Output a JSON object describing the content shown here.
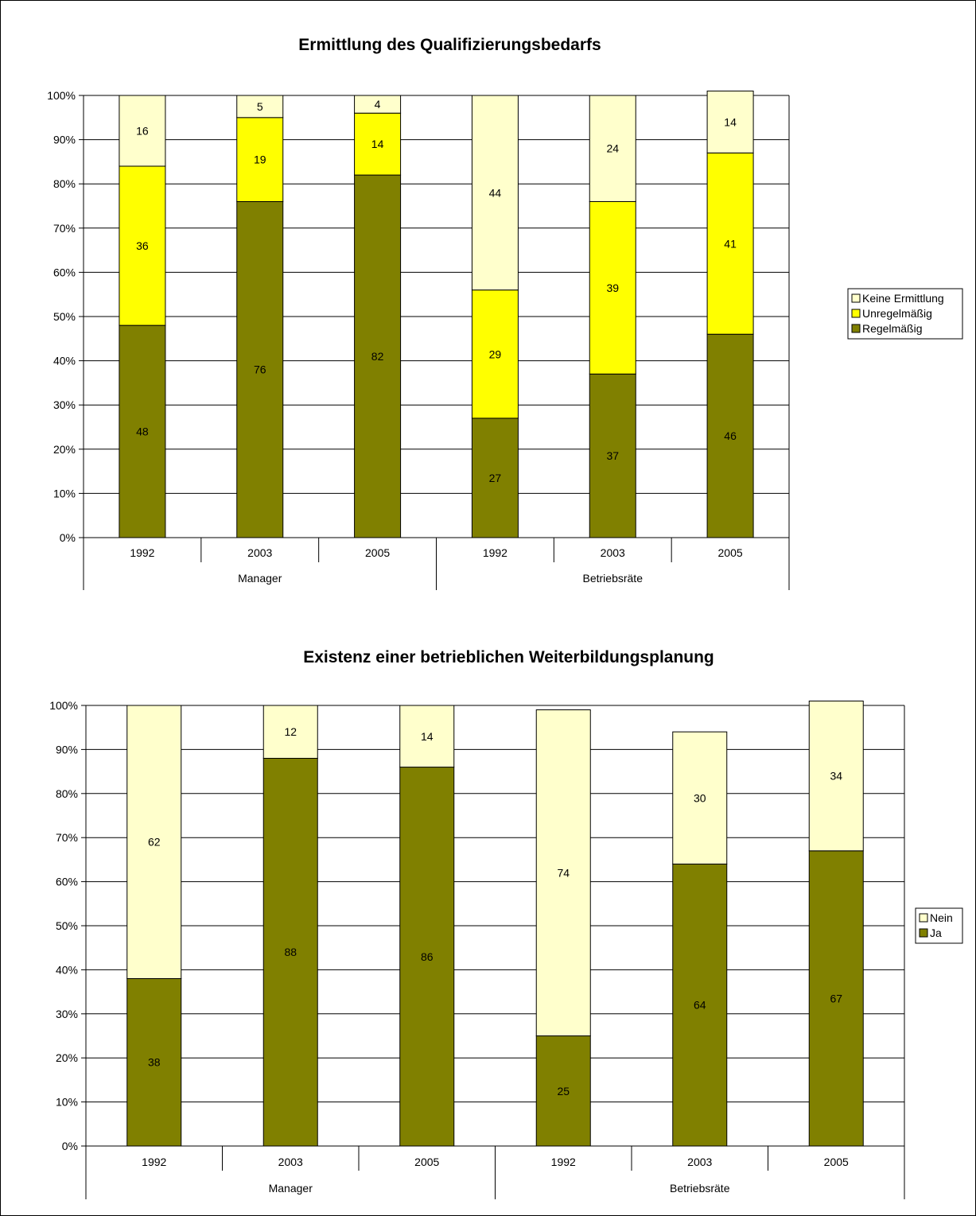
{
  "colors": {
    "regelmaessig": "#808000",
    "unregelmaessig": "#ffff00",
    "keine": "#ffffcc",
    "ja": "#808000",
    "nein": "#ffffcc"
  },
  "chart_data": [
    {
      "type": "bar",
      "stacked": true,
      "title": "Ermittlung des Qualifizierungsbedarfs",
      "groups": [
        {
          "label": "Manager",
          "categories": [
            "1992",
            "2003",
            "2005"
          ]
        },
        {
          "label": "Betriebsräte",
          "categories": [
            "1992",
            "2003",
            "2005"
          ]
        }
      ],
      "categories": [
        "1992",
        "2003",
        "2005",
        "1992",
        "2003",
        "2005"
      ],
      "y_ticks": [
        "0%",
        "10%",
        "20%",
        "30%",
        "40%",
        "50%",
        "60%",
        "70%",
        "80%",
        "90%",
        "100%"
      ],
      "ylim": [
        0,
        100
      ],
      "grid": true,
      "legend_position": "right",
      "series": [
        {
          "name": "Regelmäßig",
          "color_key": "regelmaessig",
          "values": [
            48,
            76,
            82,
            27,
            37,
            46
          ]
        },
        {
          "name": "Unregelmäßig",
          "color_key": "unregelmaessig",
          "values": [
            36,
            19,
            14,
            29,
            39,
            41
          ]
        },
        {
          "name": "Keine Ermittlung",
          "color_key": "keine",
          "values": [
            16,
            5,
            4,
            44,
            24,
            14
          ]
        }
      ],
      "legend_order": [
        "Keine Ermittlung",
        "Unregelmäßig",
        "Regelmäßig"
      ]
    },
    {
      "type": "bar",
      "stacked": true,
      "title": "Existenz einer betrieblichen Weiterbildungsplanung",
      "groups": [
        {
          "label": "Manager",
          "categories": [
            "1992",
            "2003",
            "2005"
          ]
        },
        {
          "label": "Betriebsräte",
          "categories": [
            "1992",
            "2003",
            "2005"
          ]
        }
      ],
      "categories": [
        "1992",
        "2003",
        "2005",
        "1992",
        "2003",
        "2005"
      ],
      "y_ticks": [
        "0%",
        "10%",
        "20%",
        "30%",
        "40%",
        "50%",
        "60%",
        "70%",
        "80%",
        "90%",
        "100%"
      ],
      "ylim": [
        0,
        100
      ],
      "grid": true,
      "legend_position": "right",
      "series": [
        {
          "name": "Ja",
          "color_key": "ja",
          "values": [
            38,
            88,
            86,
            25,
            64,
            67
          ]
        },
        {
          "name": "Nein",
          "color_key": "nein",
          "values": [
            62,
            12,
            14,
            74,
            30,
            34
          ]
        }
      ],
      "legend_order": [
        "Nein",
        "Ja"
      ]
    }
  ]
}
